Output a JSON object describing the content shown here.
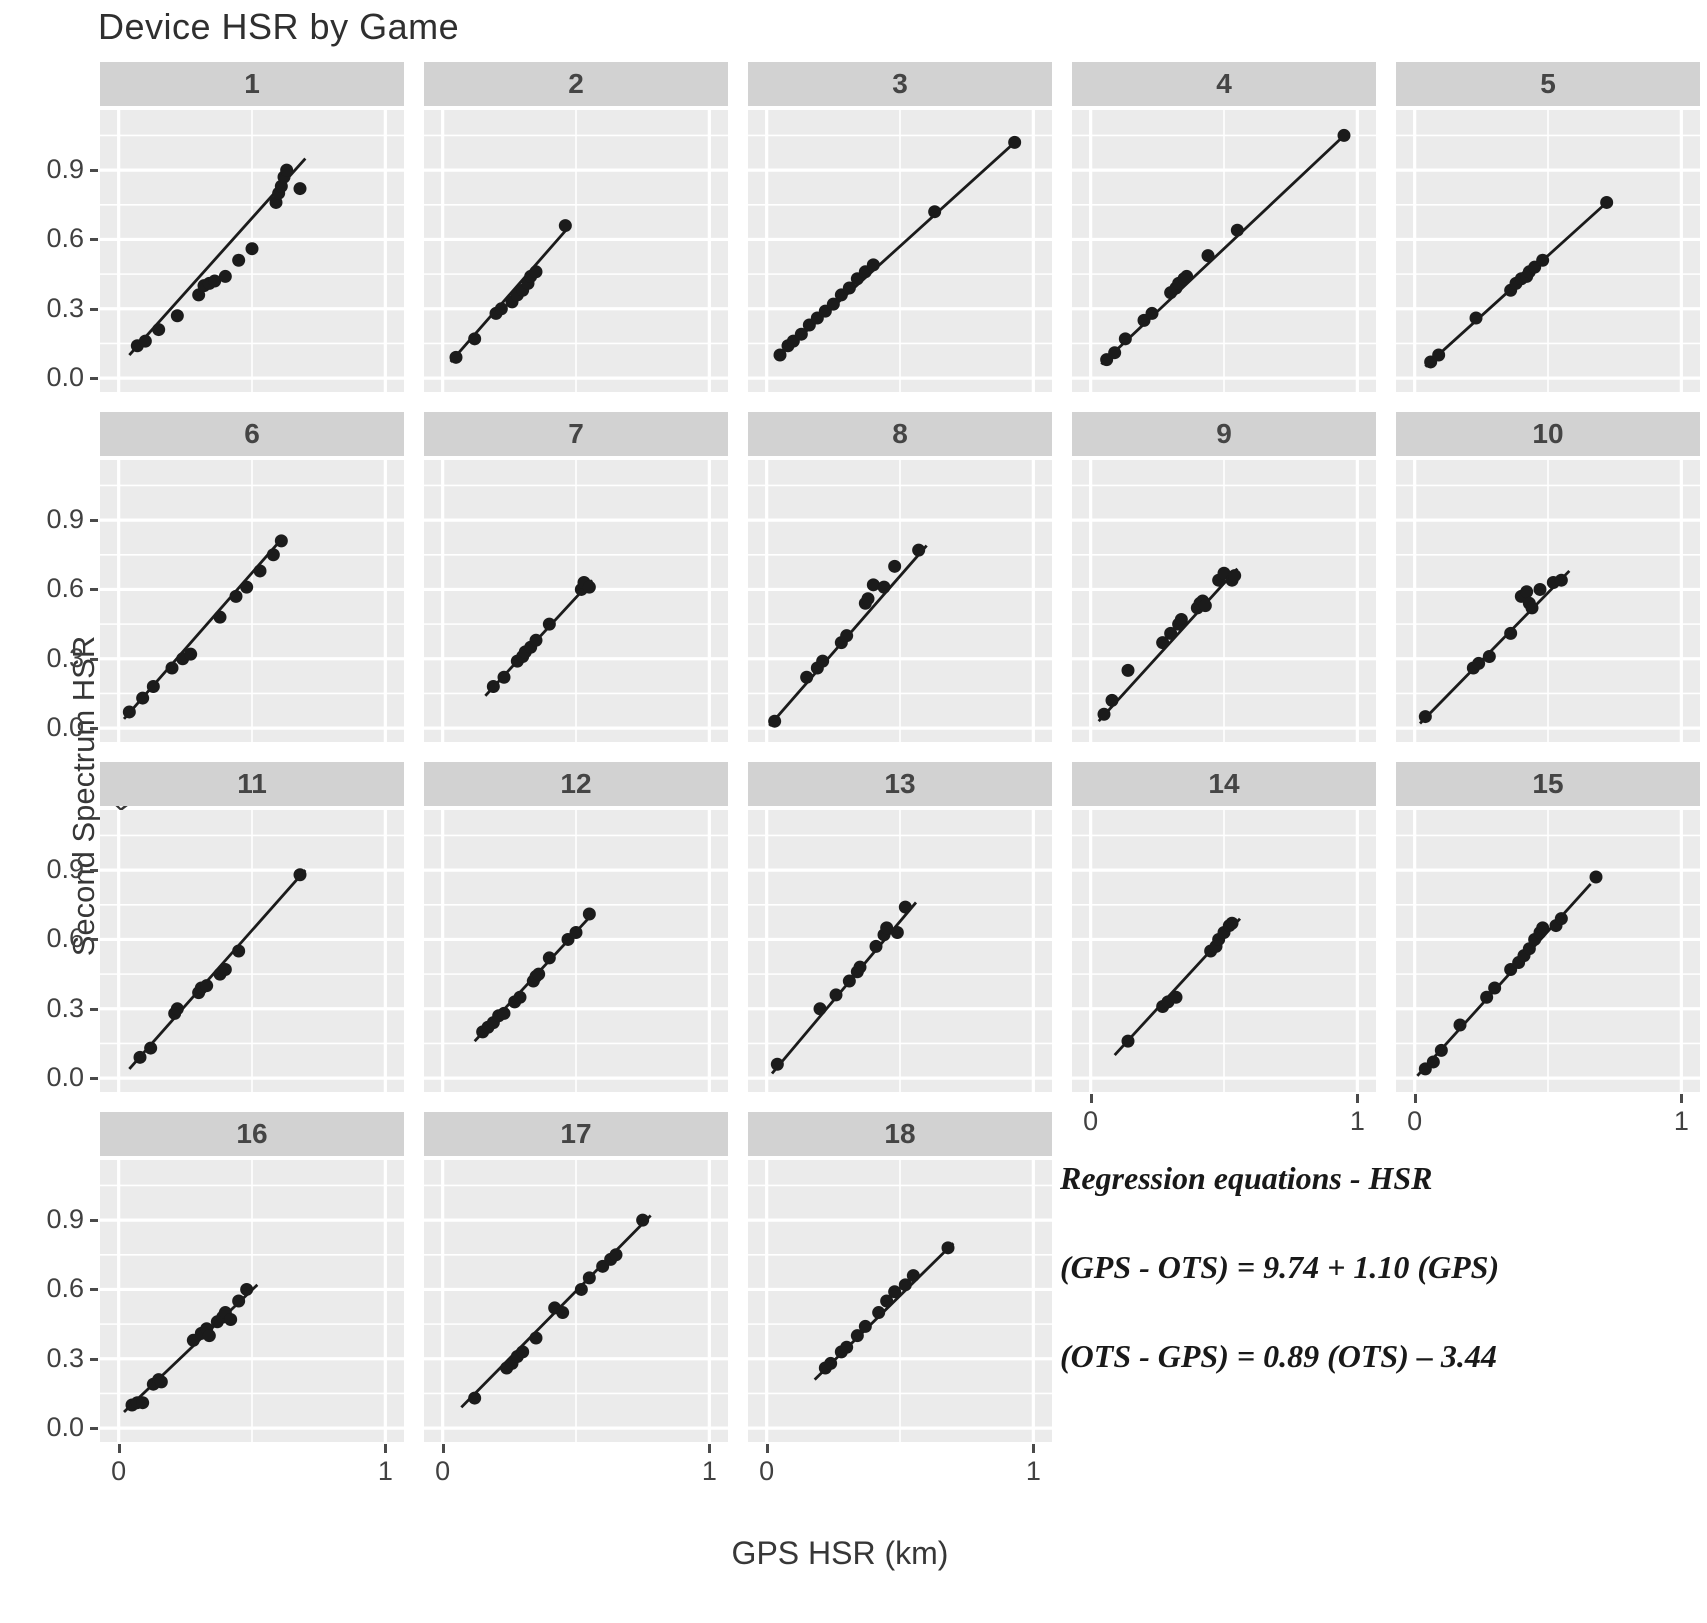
{
  "title": "Device HSR by Game",
  "axes": {
    "x_label": "GPS HSR (km)",
    "y_label": "Second Spectrum HSR (km)",
    "x_tick_labels": [
      "0",
      "1"
    ],
    "x_tick_values": [
      0,
      1
    ],
    "y_tick_labels": [
      "0.0",
      "0.3",
      "0.6",
      "0.9"
    ],
    "y_tick_values": [
      0,
      0.3,
      0.6,
      0.9
    ]
  },
  "annotation": {
    "heading": "Regression equations - HSR",
    "line1": "(GPS - OTS) = 9.74 + 1.10 (GPS)",
    "line2": "(OTS - GPS) = 0.89 (OTS) – 3.44"
  },
  "colors": {
    "panel_bg": "#ebebeb",
    "strip_bg": "#d2d2d2",
    "grid": "#ffffff",
    "point": "#1b1b1b",
    "line": "#1b1b1b",
    "axis_text": "#414141",
    "tick_mark": "#4a4a4a"
  },
  "chart_data": {
    "type": "scatter",
    "facet_by": "Game",
    "title": "Device HSR by Game",
    "xlabel": "GPS HSR (km)",
    "ylabel": "Second Spectrum HSR (km)",
    "x_ticks": [
      0,
      1
    ],
    "y_ticks": [
      0,
      0.3,
      0.6,
      0.9
    ],
    "x_minor_ticks": [
      0.5
    ],
    "y_minor_ticks": [
      0.15,
      0.45,
      0.75,
      1.05
    ],
    "grid": true,
    "legend": false,
    "facets": [
      {
        "label": "1",
        "line": [
          0.04,
          0.1,
          0.7,
          0.95
        ],
        "points": [
          [
            0.07,
            0.14
          ],
          [
            0.1,
            0.16
          ],
          [
            0.15,
            0.21
          ],
          [
            0.22,
            0.27
          ],
          [
            0.3,
            0.36
          ],
          [
            0.32,
            0.4
          ],
          [
            0.34,
            0.41
          ],
          [
            0.36,
            0.42
          ],
          [
            0.4,
            0.44
          ],
          [
            0.45,
            0.51
          ],
          [
            0.5,
            0.56
          ],
          [
            0.59,
            0.76
          ],
          [
            0.6,
            0.8
          ],
          [
            0.61,
            0.83
          ],
          [
            0.62,
            0.87
          ],
          [
            0.63,
            0.9
          ],
          [
            0.68,
            0.82
          ]
        ]
      },
      {
        "label": "2",
        "line": [
          0.03,
          0.07,
          0.47,
          0.65
        ],
        "points": [
          [
            0.05,
            0.09
          ],
          [
            0.12,
            0.17
          ],
          [
            0.2,
            0.28
          ],
          [
            0.22,
            0.3
          ],
          [
            0.26,
            0.33
          ],
          [
            0.28,
            0.36
          ],
          [
            0.3,
            0.38
          ],
          [
            0.32,
            0.41
          ],
          [
            0.33,
            0.44
          ],
          [
            0.35,
            0.46
          ],
          [
            0.46,
            0.66
          ]
        ]
      },
      {
        "label": "3",
        "line": [
          0.04,
          0.09,
          0.94,
          1.03
        ],
        "points": [
          [
            0.05,
            0.1
          ],
          [
            0.08,
            0.14
          ],
          [
            0.1,
            0.16
          ],
          [
            0.13,
            0.19
          ],
          [
            0.16,
            0.23
          ],
          [
            0.19,
            0.26
          ],
          [
            0.22,
            0.29
          ],
          [
            0.25,
            0.32
          ],
          [
            0.28,
            0.36
          ],
          [
            0.31,
            0.39
          ],
          [
            0.34,
            0.43
          ],
          [
            0.37,
            0.46
          ],
          [
            0.4,
            0.49
          ],
          [
            0.63,
            0.72
          ],
          [
            0.93,
            1.02
          ]
        ]
      },
      {
        "label": "4",
        "line": [
          0.04,
          0.06,
          0.96,
          1.06
        ],
        "points": [
          [
            0.06,
            0.08
          ],
          [
            0.09,
            0.11
          ],
          [
            0.13,
            0.17
          ],
          [
            0.2,
            0.25
          ],
          [
            0.23,
            0.28
          ],
          [
            0.3,
            0.37
          ],
          [
            0.32,
            0.39
          ],
          [
            0.33,
            0.41
          ],
          [
            0.35,
            0.43
          ],
          [
            0.36,
            0.44
          ],
          [
            0.44,
            0.53
          ],
          [
            0.55,
            0.64
          ],
          [
            0.95,
            1.05
          ]
        ]
      },
      {
        "label": "5",
        "line": [
          0.04,
          0.05,
          0.73,
          0.77
        ],
        "points": [
          [
            0.06,
            0.07
          ],
          [
            0.09,
            0.1
          ],
          [
            0.23,
            0.26
          ],
          [
            0.36,
            0.38
          ],
          [
            0.38,
            0.41
          ],
          [
            0.4,
            0.43
          ],
          [
            0.42,
            0.44
          ],
          [
            0.43,
            0.46
          ],
          [
            0.45,
            0.48
          ],
          [
            0.48,
            0.51
          ],
          [
            0.72,
            0.76
          ]
        ]
      },
      {
        "label": "6",
        "line": [
          0.02,
          0.04,
          0.62,
          0.83
        ],
        "points": [
          [
            0.04,
            0.07
          ],
          [
            0.09,
            0.13
          ],
          [
            0.13,
            0.18
          ],
          [
            0.2,
            0.26
          ],
          [
            0.24,
            0.3
          ],
          [
            0.27,
            0.32
          ],
          [
            0.38,
            0.48
          ],
          [
            0.44,
            0.57
          ],
          [
            0.48,
            0.61
          ],
          [
            0.53,
            0.68
          ],
          [
            0.58,
            0.75
          ],
          [
            0.61,
            0.81
          ]
        ]
      },
      {
        "label": "7",
        "line": [
          0.16,
          0.14,
          0.56,
          0.64
        ],
        "points": [
          [
            0.19,
            0.18
          ],
          [
            0.23,
            0.22
          ],
          [
            0.28,
            0.29
          ],
          [
            0.3,
            0.31
          ],
          [
            0.31,
            0.33
          ],
          [
            0.33,
            0.35
          ],
          [
            0.35,
            0.38
          ],
          [
            0.4,
            0.45
          ],
          [
            0.52,
            0.6
          ],
          [
            0.53,
            0.63
          ],
          [
            0.55,
            0.61
          ]
        ]
      },
      {
        "label": "8",
        "line": [
          0.01,
          0.01,
          0.6,
          0.79
        ],
        "points": [
          [
            0.03,
            0.03
          ],
          [
            0.15,
            0.22
          ],
          [
            0.19,
            0.26
          ],
          [
            0.21,
            0.29
          ],
          [
            0.28,
            0.37
          ],
          [
            0.3,
            0.4
          ],
          [
            0.37,
            0.54
          ],
          [
            0.38,
            0.56
          ],
          [
            0.4,
            0.62
          ],
          [
            0.44,
            0.61
          ],
          [
            0.48,
            0.7
          ],
          [
            0.57,
            0.77
          ]
        ]
      },
      {
        "label": "9",
        "line": [
          0.03,
          0.03,
          0.55,
          0.69
        ],
        "points": [
          [
            0.05,
            0.06
          ],
          [
            0.08,
            0.12
          ],
          [
            0.14,
            0.25
          ],
          [
            0.27,
            0.37
          ],
          [
            0.3,
            0.41
          ],
          [
            0.33,
            0.45
          ],
          [
            0.34,
            0.47
          ],
          [
            0.4,
            0.52
          ],
          [
            0.41,
            0.54
          ],
          [
            0.42,
            0.55
          ],
          [
            0.43,
            0.53
          ],
          [
            0.48,
            0.64
          ],
          [
            0.5,
            0.67
          ],
          [
            0.53,
            0.64
          ],
          [
            0.54,
            0.66
          ]
        ]
      },
      {
        "label": "10",
        "line": [
          0.02,
          0.02,
          0.58,
          0.68
        ],
        "points": [
          [
            0.04,
            0.05
          ],
          [
            0.22,
            0.26
          ],
          [
            0.24,
            0.28
          ],
          [
            0.28,
            0.31
          ],
          [
            0.36,
            0.41
          ],
          [
            0.4,
            0.57
          ],
          [
            0.42,
            0.59
          ],
          [
            0.43,
            0.54
          ],
          [
            0.44,
            0.52
          ],
          [
            0.47,
            0.6
          ],
          [
            0.52,
            0.63
          ],
          [
            0.55,
            0.64
          ]
        ]
      },
      {
        "label": "11",
        "line": [
          0.04,
          0.04,
          0.7,
          0.9
        ],
        "points": [
          [
            0.08,
            0.09
          ],
          [
            0.12,
            0.13
          ],
          [
            0.21,
            0.28
          ],
          [
            0.22,
            0.3
          ],
          [
            0.3,
            0.37
          ],
          [
            0.31,
            0.39
          ],
          [
            0.33,
            0.4
          ],
          [
            0.38,
            0.45
          ],
          [
            0.4,
            0.47
          ],
          [
            0.45,
            0.55
          ],
          [
            0.68,
            0.88
          ]
        ]
      },
      {
        "label": "12",
        "line": [
          0.12,
          0.16,
          0.57,
          0.72
        ],
        "points": [
          [
            0.15,
            0.2
          ],
          [
            0.17,
            0.22
          ],
          [
            0.19,
            0.24
          ],
          [
            0.21,
            0.27
          ],
          [
            0.23,
            0.28
          ],
          [
            0.27,
            0.33
          ],
          [
            0.29,
            0.35
          ],
          [
            0.34,
            0.42
          ],
          [
            0.35,
            0.44
          ],
          [
            0.36,
            0.45
          ],
          [
            0.4,
            0.52
          ],
          [
            0.47,
            0.6
          ],
          [
            0.5,
            0.63
          ],
          [
            0.55,
            0.71
          ]
        ]
      },
      {
        "label": "13",
        "line": [
          0.02,
          0.02,
          0.56,
          0.76
        ],
        "points": [
          [
            0.04,
            0.06
          ],
          [
            0.2,
            0.3
          ],
          [
            0.26,
            0.36
          ],
          [
            0.31,
            0.42
          ],
          [
            0.34,
            0.46
          ],
          [
            0.35,
            0.48
          ],
          [
            0.41,
            0.57
          ],
          [
            0.44,
            0.62
          ],
          [
            0.45,
            0.65
          ],
          [
            0.49,
            0.63
          ],
          [
            0.52,
            0.74
          ]
        ]
      },
      {
        "label": "14",
        "line": [
          0.09,
          0.1,
          0.56,
          0.69
        ],
        "points": [
          [
            0.14,
            0.16
          ],
          [
            0.27,
            0.31
          ],
          [
            0.29,
            0.33
          ],
          [
            0.32,
            0.35
          ],
          [
            0.45,
            0.55
          ],
          [
            0.47,
            0.57
          ],
          [
            0.48,
            0.6
          ],
          [
            0.5,
            0.63
          ],
          [
            0.52,
            0.66
          ],
          [
            0.53,
            0.67
          ]
        ]
      },
      {
        "label": "15",
        "line": [
          0.01,
          0.01,
          0.66,
          0.84
        ],
        "points": [
          [
            0.04,
            0.04
          ],
          [
            0.07,
            0.07
          ],
          [
            0.1,
            0.12
          ],
          [
            0.17,
            0.23
          ],
          [
            0.27,
            0.35
          ],
          [
            0.3,
            0.39
          ],
          [
            0.36,
            0.47
          ],
          [
            0.39,
            0.5
          ],
          [
            0.41,
            0.53
          ],
          [
            0.43,
            0.56
          ],
          [
            0.45,
            0.6
          ],
          [
            0.47,
            0.63
          ],
          [
            0.48,
            0.65
          ],
          [
            0.53,
            0.66
          ],
          [
            0.55,
            0.69
          ],
          [
            0.68,
            0.87
          ]
        ]
      },
      {
        "label": "16",
        "line": [
          0.02,
          0.07,
          0.52,
          0.62
        ],
        "points": [
          [
            0.05,
            0.1
          ],
          [
            0.07,
            0.11
          ],
          [
            0.09,
            0.11
          ],
          [
            0.13,
            0.19
          ],
          [
            0.15,
            0.21
          ],
          [
            0.16,
            0.2
          ],
          [
            0.28,
            0.38
          ],
          [
            0.31,
            0.41
          ],
          [
            0.33,
            0.43
          ],
          [
            0.34,
            0.4
          ],
          [
            0.37,
            0.46
          ],
          [
            0.39,
            0.48
          ],
          [
            0.4,
            0.5
          ],
          [
            0.42,
            0.47
          ],
          [
            0.45,
            0.55
          ],
          [
            0.48,
            0.6
          ]
        ]
      },
      {
        "label": "17",
        "line": [
          0.07,
          0.09,
          0.78,
          0.92
        ],
        "points": [
          [
            0.12,
            0.13
          ],
          [
            0.24,
            0.26
          ],
          [
            0.26,
            0.28
          ],
          [
            0.28,
            0.31
          ],
          [
            0.3,
            0.33
          ],
          [
            0.35,
            0.39
          ],
          [
            0.42,
            0.52
          ],
          [
            0.45,
            0.5
          ],
          [
            0.52,
            0.6
          ],
          [
            0.55,
            0.65
          ],
          [
            0.6,
            0.7
          ],
          [
            0.63,
            0.73
          ],
          [
            0.65,
            0.75
          ],
          [
            0.75,
            0.9
          ]
        ]
      },
      {
        "label": "18",
        "line": [
          0.18,
          0.21,
          0.7,
          0.8
        ],
        "points": [
          [
            0.22,
            0.26
          ],
          [
            0.24,
            0.28
          ],
          [
            0.28,
            0.33
          ],
          [
            0.3,
            0.35
          ],
          [
            0.34,
            0.4
          ],
          [
            0.37,
            0.44
          ],
          [
            0.42,
            0.5
          ],
          [
            0.45,
            0.55
          ],
          [
            0.48,
            0.59
          ],
          [
            0.52,
            0.62
          ],
          [
            0.55,
            0.66
          ],
          [
            0.68,
            0.78
          ]
        ]
      }
    ]
  }
}
